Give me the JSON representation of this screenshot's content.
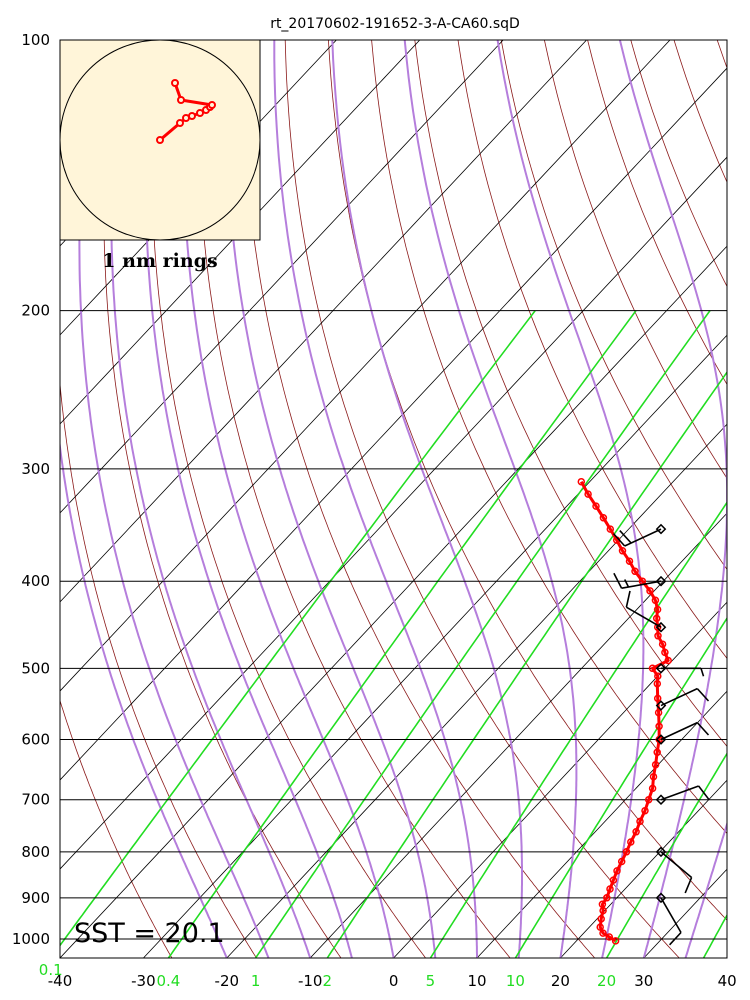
{
  "title": "rt_20170602-191652-3-A-CA60.sqD",
  "sst_label": "SST = 20.1",
  "hodograph": {
    "label": "1 nm rings",
    "bg_color": "#fff5d9",
    "trace_color": "#ff0000",
    "points_nm": [
      [
        0.0,
        0.0
      ],
      [
        0.2,
        0.17
      ],
      [
        0.26,
        0.22
      ],
      [
        0.32,
        0.24
      ],
      [
        0.4,
        0.27
      ],
      [
        0.46,
        0.3
      ],
      [
        0.5,
        0.33
      ],
      [
        0.52,
        0.35
      ],
      [
        0.21,
        0.4
      ],
      [
        0.15,
        0.57
      ]
    ]
  },
  "colors": {
    "isobar": "#000000",
    "isotherm": "#000000",
    "dry_adiabat": "#8b1a1a",
    "moist_adiabat": "#b57edc",
    "mixing_ratio": "#22dd22",
    "temperature": "#ff0000",
    "wind_barb": "#000000"
  },
  "chart_data": {
    "type": "skew-t",
    "title": "rt_20170602-191652-3-A-CA60.sqD",
    "xlabel": "",
    "ylabel": "",
    "xlim": [
      -40,
      40
    ],
    "ylim": [
      1050,
      100
    ],
    "y_scale": "log",
    "pressure_ticks": [
      "100",
      "200",
      "300",
      "400",
      "500",
      "600",
      "700",
      "800",
      "900",
      "1000"
    ],
    "temperature_ticks": [
      "-40",
      "-30",
      "-20",
      "-10",
      "0",
      "10",
      "20",
      "30",
      "40"
    ],
    "mixing_ratio_labels": [
      "0.1",
      "0.4",
      "1",
      "2",
      "5",
      "10",
      "20"
    ],
    "temperature_profile": {
      "pressure_hPa": [
        1005,
        995,
        985,
        970,
        950,
        930,
        915,
        900,
        880,
        860,
        840,
        820,
        800,
        780,
        760,
        740,
        720,
        700,
        680,
        660,
        640,
        620,
        600,
        580,
        560,
        540,
        520,
        510,
        500,
        490,
        480,
        470,
        460,
        450,
        440,
        430,
        420,
        410,
        400,
        390,
        380,
        370,
        360,
        350,
        340,
        330,
        320,
        310
      ],
      "temperature_C": [
        24.7,
        23.5,
        22.3,
        21.3,
        20.5,
        19.8,
        19.0,
        18.8,
        18.2,
        17.6,
        17.0,
        16.5,
        16.0,
        15.4,
        14.9,
        14.2,
        13.6,
        12.8,
        12.0,
        10.8,
        9.7,
        8.5,
        7.3,
        5.8,
        4.2,
        2.5,
        0.8,
        0.0,
        -1.5,
        -0.5,
        -1.8,
        -3.0,
        -4.5,
        -5.5,
        -6.6,
        -7.5,
        -8.8,
        -10.5,
        -12.5,
        -14.5,
        -16.3,
        -18.3,
        -20.2,
        -22.2,
        -24.3,
        -26.5,
        -28.8,
        -31.0
      ]
    },
    "wind_barbs": [
      {
        "pressure_hPa": 350,
        "direction_deg": 245,
        "speed_kt": 20
      },
      {
        "pressure_hPa": 400,
        "direction_deg": 260,
        "speed_kt": 15
      },
      {
        "pressure_hPa": 450,
        "direction_deg": 300,
        "speed_kt": 10
      },
      {
        "pressure_hPa": 500,
        "direction_deg": 90,
        "speed_kt": 5
      },
      {
        "pressure_hPa": 550,
        "direction_deg": 65,
        "speed_kt": 10
      },
      {
        "pressure_hPa": 600,
        "direction_deg": 65,
        "speed_kt": 10
      },
      {
        "pressure_hPa": 700,
        "direction_deg": 70,
        "speed_kt": 10
      },
      {
        "pressure_hPa": 800,
        "direction_deg": 130,
        "speed_kt": 10
      },
      {
        "pressure_hPa": 900,
        "direction_deg": 150,
        "speed_kt": 10
      }
    ]
  }
}
